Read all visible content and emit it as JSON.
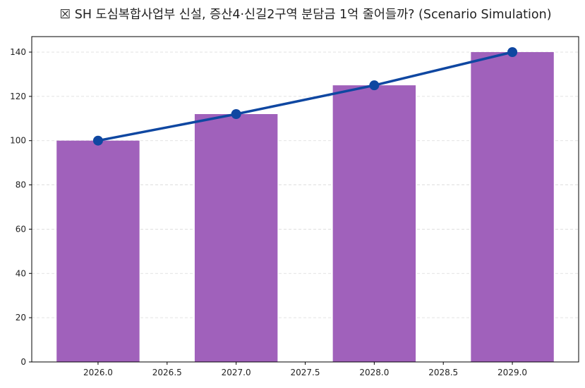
{
  "chart_data": {
    "type": "bar+line",
    "title": "☒ SH 도심복합사업부 신설, 증산4·신길2구역 분담금 1억 줄어들까? (Scenario Simulation)",
    "xlabel": "",
    "ylabel": "",
    "x": [
      2026,
      2027,
      2028,
      2029
    ],
    "bar_values": [
      100,
      112,
      125,
      140
    ],
    "line_values": [
      100,
      112,
      125,
      140
    ],
    "xlim": [
      2025.52,
      2029.48
    ],
    "ylim": [
      0,
      147
    ],
    "xticks": [
      "2026.0",
      "2026.5",
      "2027.0",
      "2027.5",
      "2028.0",
      "2028.5",
      "2029.0"
    ],
    "yticks": [
      "0",
      "20",
      "40",
      "60",
      "80",
      "100",
      "120",
      "140"
    ],
    "grid": "y dashed",
    "colors": {
      "bar": "#a061bb",
      "line": "#0f47a1",
      "grid": "#d9d9d9"
    }
  }
}
